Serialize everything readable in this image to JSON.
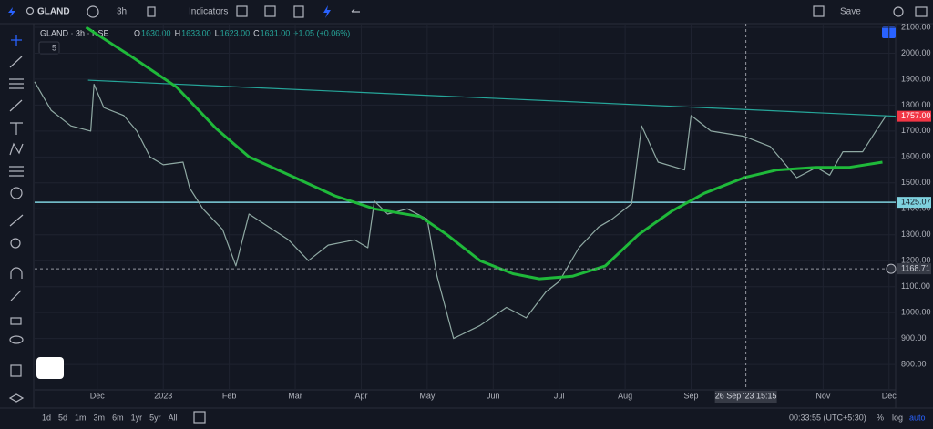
{
  "toolbar": {
    "symbol": "GLAND",
    "interval": "3h",
    "indicators": "Indicators",
    "save": "Save"
  },
  "legend": {
    "title": "GLAND · 3h · NSE",
    "ohlc": [
      {
        "key": "O",
        "value": "1630.00"
      },
      {
        "key": "H",
        "value": "1633.00"
      },
      {
        "key": "L",
        "value": "1623.00"
      },
      {
        "key": "C",
        "value": "1631.00"
      }
    ],
    "change": "+1.05 (+0.06%)",
    "indicator_count": "5"
  },
  "chart_data": {
    "type": "line",
    "grid": true,
    "xlim": [
      0.05,
      13.1
    ],
    "ylim": [
      702,
      2114
    ],
    "xticks": [
      {
        "value": 1,
        "label": "Dec"
      },
      {
        "value": 2,
        "label": "2023"
      },
      {
        "value": 3,
        "label": "Feb"
      },
      {
        "value": 4,
        "label": "Mar"
      },
      {
        "value": 5,
        "label": "Apr"
      },
      {
        "value": 6,
        "label": "May"
      },
      {
        "value": 7,
        "label": "Jun"
      },
      {
        "value": 8,
        "label": "Jul"
      },
      {
        "value": 9,
        "label": "Aug"
      },
      {
        "value": 10,
        "label": "Sep"
      },
      {
        "value": 12,
        "label": "Nov"
      },
      {
        "value": 13,
        "label": "Dec"
      }
    ],
    "yticks": [
      {
        "value": 800,
        "label": "800.00"
      },
      {
        "value": 900,
        "label": "900.00"
      },
      {
        "value": 1000,
        "label": "1000.00"
      },
      {
        "value": 1100,
        "label": "1100.00"
      },
      {
        "value": 1200,
        "label": "1200.00"
      },
      {
        "value": 1300,
        "label": "1300.00"
      },
      {
        "value": 1400,
        "label": "1400.00"
      },
      {
        "value": 1500,
        "label": "1500.00"
      },
      {
        "value": 1600,
        "label": "1600.00"
      },
      {
        "value": 1700,
        "label": "1700.00"
      },
      {
        "value": 1800,
        "label": "1800.00"
      },
      {
        "value": 1900,
        "label": "1900.00"
      },
      {
        "value": 2000,
        "label": "2000.00"
      },
      {
        "value": 2100,
        "label": "2100.00"
      }
    ],
    "series": [
      {
        "color": "#8fa9a3",
        "width": 1.2,
        "x": [
          0.05,
          0.3,
          0.6,
          0.9,
          0.95,
          1.1,
          1.4,
          1.6,
          1.8,
          2.0,
          2.3,
          2.4,
          2.6,
          2.9,
          3.1,
          3.3,
          3.6,
          3.9,
          4.2,
          4.5,
          4.9,
          5.1,
          5.2,
          5.4,
          5.7,
          6.0,
          6.15,
          6.4,
          6.8,
          7.2,
          7.5,
          7.8,
          8.0,
          8.3,
          8.6,
          8.8,
          9.1,
          9.25,
          9.5,
          9.9,
          10.0,
          10.3,
          10.8,
          11.2,
          11.6,
          11.9,
          12.1,
          12.3,
          12.6,
          12.8,
          12.95
        ],
        "values": [
          1890,
          1780,
          1720,
          1700,
          1880,
          1790,
          1760,
          1700,
          1600,
          1570,
          1580,
          1480,
          1400,
          1320,
          1180,
          1380,
          1330,
          1280,
          1200,
          1260,
          1280,
          1250,
          1430,
          1380,
          1400,
          1360,
          1140,
          900,
          950,
          1020,
          980,
          1080,
          1120,
          1250,
          1330,
          1360,
          1420,
          1720,
          1580,
          1550,
          1760,
          1700,
          1680,
          1640,
          1520,
          1560,
          1530,
          1620,
          1620,
          1700,
          1757
        ]
      },
      {
        "color": "#1fb93a",
        "width": 3,
        "x": [
          0.83,
          1.5,
          2.2,
          2.8,
          3.3,
          4.0,
          4.6,
          5.2,
          5.9,
          6.3,
          6.8,
          7.3,
          7.7,
          8.2,
          8.7,
          9.2,
          9.7,
          10.2,
          10.8,
          11.3,
          11.9,
          12.4,
          12.9
        ],
        "values": [
          2100,
          1990,
          1870,
          1710,
          1600,
          1520,
          1450,
          1400,
          1370,
          1300,
          1200,
          1150,
          1130,
          1140,
          1180,
          1300,
          1390,
          1460,
          1520,
          1550,
          1560,
          1560,
          1580
        ]
      }
    ],
    "trendline": {
      "color": "#26a69a",
      "x": [
        0.86,
        13.1
      ],
      "values": [
        1896,
        1757
      ]
    },
    "hline": {
      "color": "#7fd1de",
      "value": 1425.07
    },
    "price_tags": [
      {
        "value": 1757,
        "label": "1757.00",
        "color": "#f23645"
      },
      {
        "value": 1425.07,
        "label": "1425.07",
        "color": "#7fd1de"
      }
    ],
    "crosshair": {
      "x": 10.83,
      "y": 1168.71,
      "x_label": "26 Sep '23  15:15",
      "y_label": "1168.71"
    }
  },
  "bottom_bar": {
    "ranges": [
      "1d",
      "5d",
      "1m",
      "3m",
      "6m",
      "1yr",
      "5yr",
      "All"
    ],
    "clock": "00:33:55 (UTC+5:30)",
    "percent": "%",
    "log": "log",
    "auto": "auto"
  }
}
